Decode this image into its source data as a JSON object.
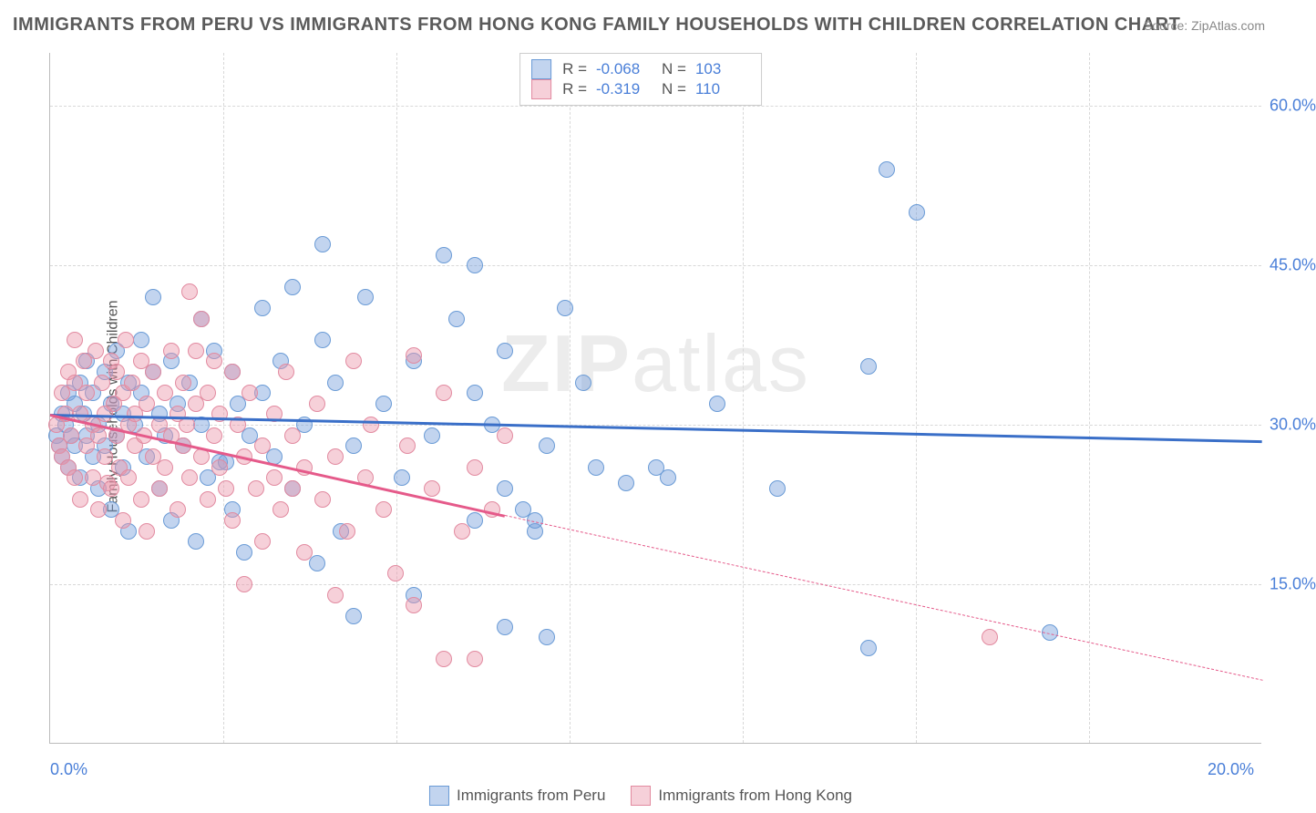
{
  "title": "IMMIGRANTS FROM PERU VS IMMIGRANTS FROM HONG KONG FAMILY HOUSEHOLDS WITH CHILDREN CORRELATION CHART",
  "source": "Source: ZipAtlas.com",
  "y_axis_title": "Family Households with Children",
  "watermark": "ZIPatlas",
  "chart": {
    "type": "scatter",
    "xlim": [
      0,
      20
    ],
    "ylim": [
      0,
      65
    ],
    "x_ticks": [
      0,
      20
    ],
    "x_tick_labels": [
      "0.0%",
      "20.0%"
    ],
    "x_minor_ticks": [
      2.86,
      5.71,
      8.57,
      11.43,
      14.29,
      17.14
    ],
    "y_ticks": [
      15,
      30,
      45,
      60
    ],
    "y_tick_labels": [
      "15.0%",
      "30.0%",
      "45.0%",
      "60.0%"
    ],
    "grid_color": "#d8d8d8",
    "background_color": "#ffffff",
    "axis_color": "#bbbbbb",
    "marker_radius": 9,
    "series": [
      {
        "name": "Immigrants from Peru",
        "fill_color": "rgba(120,160,220,0.45)",
        "stroke_color": "#6a9bd6",
        "line_color": "#3a6fc8",
        "R": "-0.068",
        "N": "103",
        "trend": {
          "x1": 0,
          "y1": 31,
          "x2": 20,
          "y2": 28.5,
          "dash_after_x": 20
        },
        "points": [
          [
            0.1,
            29
          ],
          [
            0.15,
            28
          ],
          [
            0.2,
            31
          ],
          [
            0.2,
            27
          ],
          [
            0.25,
            30
          ],
          [
            0.3,
            33
          ],
          [
            0.3,
            26
          ],
          [
            0.35,
            29
          ],
          [
            0.4,
            32
          ],
          [
            0.4,
            28
          ],
          [
            0.5,
            34
          ],
          [
            0.5,
            25
          ],
          [
            0.55,
            31
          ],
          [
            0.6,
            29
          ],
          [
            0.6,
            36
          ],
          [
            0.7,
            27
          ],
          [
            0.7,
            33
          ],
          [
            0.8,
            30
          ],
          [
            0.8,
            24
          ],
          [
            0.9,
            35
          ],
          [
            0.9,
            28
          ],
          [
            1.0,
            32
          ],
          [
            1.0,
            22
          ],
          [
            1.1,
            37
          ],
          [
            1.1,
            29
          ],
          [
            1.2,
            31
          ],
          [
            1.2,
            26
          ],
          [
            1.3,
            34
          ],
          [
            1.3,
            20
          ],
          [
            1.4,
            30
          ],
          [
            1.5,
            33
          ],
          [
            1.5,
            38
          ],
          [
            1.6,
            27
          ],
          [
            1.7,
            42
          ],
          [
            1.7,
            35
          ],
          [
            1.8,
            31
          ],
          [
            1.8,
            24
          ],
          [
            1.9,
            29
          ],
          [
            2.0,
            36
          ],
          [
            2.0,
            21
          ],
          [
            2.1,
            32
          ],
          [
            2.2,
            28
          ],
          [
            2.3,
            34
          ],
          [
            2.4,
            19
          ],
          [
            2.5,
            40
          ],
          [
            2.5,
            30
          ],
          [
            2.6,
            25
          ],
          [
            2.7,
            37
          ],
          [
            2.8,
            26.5
          ],
          [
            2.9,
            26.5
          ],
          [
            3.0,
            35
          ],
          [
            3.0,
            22
          ],
          [
            3.1,
            32
          ],
          [
            3.2,
            18
          ],
          [
            3.3,
            29
          ],
          [
            3.5,
            41
          ],
          [
            3.5,
            33
          ],
          [
            3.7,
            27
          ],
          [
            3.8,
            36
          ],
          [
            4.0,
            24
          ],
          [
            4.0,
            43
          ],
          [
            4.2,
            30
          ],
          [
            4.4,
            17
          ],
          [
            4.5,
            47
          ],
          [
            4.5,
            38
          ],
          [
            4.7,
            34
          ],
          [
            4.8,
            20
          ],
          [
            5.0,
            28
          ],
          [
            5.2,
            42
          ],
          [
            5.0,
            12
          ],
          [
            5.5,
            32
          ],
          [
            5.8,
            25
          ],
          [
            6.0,
            36
          ],
          [
            6.0,
            14
          ],
          [
            6.3,
            29
          ],
          [
            6.5,
            46
          ],
          [
            6.7,
            40
          ],
          [
            7.0,
            33
          ],
          [
            7.0,
            21
          ],
          [
            7.0,
            45
          ],
          [
            7.3,
            30
          ],
          [
            7.5,
            24
          ],
          [
            7.5,
            37
          ],
          [
            7.5,
            11
          ],
          [
            7.8,
            22
          ],
          [
            8.0,
            20
          ],
          [
            8.0,
            21
          ],
          [
            8.2,
            28
          ],
          [
            8.2,
            10
          ],
          [
            8.5,
            41
          ],
          [
            8.8,
            34
          ],
          [
            9.0,
            26
          ],
          [
            9.5,
            24.5
          ],
          [
            10.0,
            26
          ],
          [
            10.2,
            25
          ],
          [
            11.0,
            32
          ],
          [
            12.0,
            24
          ],
          [
            13.5,
            35.5
          ],
          [
            13.8,
            54
          ],
          [
            14.3,
            50
          ],
          [
            13.5,
            9
          ],
          [
            16.5,
            10.5
          ]
        ]
      },
      {
        "name": "Immigrants from Hong Kong",
        "fill_color": "rgba(235,150,170,0.45)",
        "stroke_color": "#e28aa0",
        "line_color": "#e55a8a",
        "R": "-0.319",
        "N": "110",
        "trend": {
          "x1": 0,
          "y1": 31,
          "x2": 7.5,
          "y2": 21.5,
          "dash_after_x": 7.5,
          "dash_x2": 20,
          "dash_y2": 6
        },
        "points": [
          [
            0.1,
            30
          ],
          [
            0.15,
            28
          ],
          [
            0.2,
            33
          ],
          [
            0.2,
            27
          ],
          [
            0.25,
            31
          ],
          [
            0.3,
            35
          ],
          [
            0.3,
            26
          ],
          [
            0.35,
            29
          ],
          [
            0.4,
            34
          ],
          [
            0.4,
            25
          ],
          [
            0.4,
            38
          ],
          [
            0.5,
            31
          ],
          [
            0.5,
            23
          ],
          [
            0.55,
            36
          ],
          [
            0.6,
            28
          ],
          [
            0.6,
            33
          ],
          [
            0.7,
            30
          ],
          [
            0.7,
            25
          ],
          [
            0.75,
            37
          ],
          [
            0.8,
            29
          ],
          [
            0.8,
            22
          ],
          [
            0.85,
            34
          ],
          [
            0.9,
            31
          ],
          [
            0.9,
            27
          ],
          [
            0.95,
            24.5
          ],
          [
            1.0,
            36
          ],
          [
            1.0,
            24
          ],
          [
            1.05,
            32
          ],
          [
            1.1,
            29
          ],
          [
            1.1,
            35
          ],
          [
            1.15,
            26
          ],
          [
            1.2,
            33
          ],
          [
            1.2,
            21
          ],
          [
            1.25,
            38
          ],
          [
            1.3,
            30
          ],
          [
            1.3,
            25
          ],
          [
            1.35,
            34
          ],
          [
            1.4,
            28
          ],
          [
            1.4,
            31
          ],
          [
            1.5,
            23
          ],
          [
            1.5,
            36
          ],
          [
            1.55,
            29
          ],
          [
            1.6,
            32
          ],
          [
            1.6,
            20
          ],
          [
            1.7,
            27
          ],
          [
            1.7,
            35
          ],
          [
            1.8,
            30
          ],
          [
            1.8,
            24
          ],
          [
            1.9,
            33
          ],
          [
            1.9,
            26
          ],
          [
            2.0,
            29
          ],
          [
            2.0,
            37
          ],
          [
            2.1,
            31
          ],
          [
            2.1,
            22
          ],
          [
            2.2,
            34
          ],
          [
            2.2,
            28
          ],
          [
            2.25,
            30
          ],
          [
            2.3,
            42.5
          ],
          [
            2.3,
            25
          ],
          [
            2.4,
            32
          ],
          [
            2.4,
            37
          ],
          [
            2.5,
            27
          ],
          [
            2.5,
            40
          ],
          [
            2.6,
            33
          ],
          [
            2.6,
            23
          ],
          [
            2.7,
            29
          ],
          [
            2.7,
            36
          ],
          [
            2.8,
            26
          ],
          [
            2.8,
            31
          ],
          [
            2.9,
            24
          ],
          [
            3.0,
            35
          ],
          [
            3.0,
            21
          ],
          [
            3.1,
            30
          ],
          [
            3.2,
            27
          ],
          [
            3.2,
            15
          ],
          [
            3.3,
            33
          ],
          [
            3.4,
            24
          ],
          [
            3.5,
            28
          ],
          [
            3.5,
            19
          ],
          [
            3.7,
            25
          ],
          [
            3.7,
            31
          ],
          [
            3.8,
            22
          ],
          [
            3.9,
            35
          ],
          [
            4.0,
            24
          ],
          [
            4.0,
            29
          ],
          [
            4.2,
            26
          ],
          [
            4.2,
            18
          ],
          [
            4.4,
            32
          ],
          [
            4.5,
            23
          ],
          [
            4.7,
            14
          ],
          [
            4.7,
            27
          ],
          [
            4.9,
            20
          ],
          [
            5.0,
            36
          ],
          [
            5.2,
            25
          ],
          [
            5.3,
            30
          ],
          [
            5.5,
            22
          ],
          [
            5.7,
            16
          ],
          [
            5.9,
            28
          ],
          [
            6.0,
            13
          ],
          [
            6.0,
            36.5
          ],
          [
            6.3,
            24
          ],
          [
            6.5,
            33
          ],
          [
            6.5,
            8
          ],
          [
            6.8,
            20
          ],
          [
            7.0,
            26
          ],
          [
            7.0,
            8
          ],
          [
            7.3,
            22
          ],
          [
            7.5,
            29
          ],
          [
            15.5,
            10
          ]
        ]
      }
    ]
  },
  "stats_box": {
    "rows": [
      {
        "swatch_fill": "rgba(120,160,220,0.45)",
        "swatch_stroke": "#6a9bd6",
        "R_label": "R =",
        "R_value": "-0.068",
        "N_label": "N =",
        "N_value": "103"
      },
      {
        "swatch_fill": "rgba(235,150,170,0.45)",
        "swatch_stroke": "#e28aa0",
        "R_label": "R =",
        "R_value": "-0.319",
        "N_label": "N =",
        "N_value": "110"
      }
    ]
  },
  "bottom_legend": [
    {
      "swatch_fill": "rgba(120,160,220,0.45)",
      "swatch_stroke": "#6a9bd6",
      "label": "Immigrants from Peru"
    },
    {
      "swatch_fill": "rgba(235,150,170,0.45)",
      "swatch_stroke": "#e28aa0",
      "label": "Immigrants from Hong Kong"
    }
  ]
}
